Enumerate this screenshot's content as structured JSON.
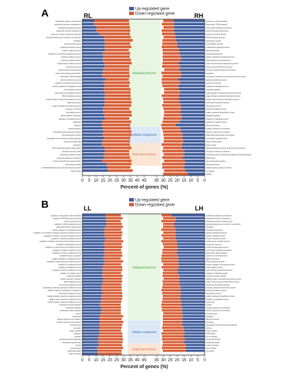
{
  "colors": {
    "up": "#3f5e9e",
    "down": "#d95f35",
    "bio_bg": "#e8f5e1",
    "bio_text": "#2a9a3e",
    "cell_bg": "#dde9f7",
    "cell_text": "#2b5ea8",
    "mol_bg": "#fbe6d6",
    "mol_text": "#c8663a"
  },
  "chart_data": [
    {
      "panel": "A",
      "type": "bar",
      "legend": [
        "Up-regulated gene",
        "Down-regulated gene"
      ],
      "left_title": "RL",
      "right_title": "RH",
      "xlabel": "Percent of genes (%)",
      "xticks": [
        "0",
        "5",
        "10",
        "15",
        "20",
        "25",
        "30",
        "35",
        "40",
        "45",
        "35",
        "30",
        "25",
        "20",
        "15",
        "10",
        "5",
        "0"
      ],
      "categories": [
        {
          "name": "Biological process",
          "start": 0,
          "end": 33
        },
        {
          "name": "Cellular component",
          "start": 33,
          "end": 38
        },
        {
          "name": "Molecular function",
          "start": 38,
          "end": 45
        }
      ],
      "left_terms": [
        "multicellular organism development",
        "anatomical structure morphogenesis",
        "multicellular organismal process",
        "anatomical structure development",
        "response to oxygen-containing compound",
        "developmental process involved in reproduction",
        "translation",
        "developmental process",
        "peptide biosynthetic process",
        "peptide metabolic process",
        "regulation of multicellular organismal process",
        "amide biosynthetic process",
        "response to abiotic stimulus",
        "cellular amide metabolic process",
        "reproductive process",
        "cellular developmental process",
        "nucleic acid-templated transcription",
        "transcription, DNA-templated",
        "cellular biosynthetic process",
        "regulation of developmental process",
        "positive regulation of biological process",
        "multi-organism process",
        "macromolecule biosynthetic process",
        "RNA biosynthetic process",
        "cellular nitrogen compound biosynthetic process",
        "signal transduction",
        "organic substance biosynthetic process",
        "response to chemical",
        "biosynthetic process",
        "cellular response to stimulus",
        "regulation of biological process",
        "plastid part",
        "ribosome",
        "ribosomal subunit",
        "intracellular ribonucleoprotein complex",
        "ribonucleoprotein complex",
        "intracellular non-membrane-bounded organelle",
        "plasma membrane part",
        "membrane",
        "DNA binding transcription factor activity",
        "structural molecule activity",
        "transcription regulator activity",
        "structural constituent of ribosome",
        "protein serine/threonine kinase activity",
        "protein kinase activity",
        "phosphotransferase activity, alcohol group as acceptor",
        "kinase activity"
      ],
      "right_terms": [
        "response to external stimulus",
        "transcription, DNA-templated",
        "nucleic acid-templated transcription",
        "cellular developmental process",
        "response to abiotic stimulus",
        "RNA biosynthetic process",
        "reproductive process",
        "multi-organism process",
        "multicellular organismal process",
        "signal transduction",
        "developmental process",
        "positive regulation of biological process",
        "anatomical structure development",
        "cellular macromolecule biosynthetic process",
        "macromolecule biosynthetic process",
        "aromatic compound biosynthetic process",
        "translation",
        "nucleobase-containing compound biosynthetic process",
        "peptide biosynthetic process",
        "response to stimulus",
        "regulation of biological process",
        "biological regulation",
        "cellular nitrogen compound biosynthetic process",
        "organonitrogen compound biosynthetic process",
        "organic cyclic compound biosynthetic process",
        "heterocycle biosynthetic process",
        "biosynthetic process",
        "cellular biosynthetic process",
        "organic substance biosynthetic process",
        "biological regulation",
        "regulation of biological process",
        "regulation of cellular process",
        "plasma membrane",
        "integral component of membrane",
        "intrinsic component of membrane",
        "DNA binding transcription factor activity",
        "transcription regulator activity",
        "protein kinase activity",
        "kinase activity",
        "phosphotransferase activity, alcohol group as acceptor",
        "structural constituent of ribosome",
        "transferase activity, transferring phosphorus-containing groups",
        "DNA binding",
        "structural molecule activity",
        "transferase activity",
        "catalytic activity, acting on a protein",
        "ion binding",
        "binding"
      ],
      "left_total": [
        33.9,
        34.2,
        34.6,
        34.9,
        34.5,
        35.2,
        36.6,
        34.8,
        35.6,
        33.8,
        34.7,
        34.4,
        35.3,
        35.9,
        34.2,
        34.1,
        34.2,
        34.5,
        33.8,
        34.6,
        34.0,
        35.1,
        35.0,
        35.1,
        35.3,
        35.8,
        35.5,
        34.2,
        35.7,
        35.9,
        34.0,
        35.6,
        34.7,
        35.1,
        35.7,
        35.8,
        34.9,
        34.6,
        34.6,
        35.6,
        34.0,
        34.0,
        34.8,
        35.8,
        35.7,
        35.0,
        36.6
      ],
      "left_up": [
        8.7,
        8.4,
        10.3,
        10.1,
        12.0,
        15.7,
        16.1,
        16.3,
        16.2,
        16.3,
        14.8,
        15.0,
        14.7,
        15.7,
        16.2,
        15.1,
        14.8,
        14.5,
        16.9,
        15.4,
        16.0,
        15.6,
        16.0,
        16.4,
        16.2,
        16.0,
        16.0,
        15.1,
        15.2,
        15.5,
        16.3,
        14.5,
        14.2,
        14.8,
        15.4,
        14.5,
        15.8,
        14.5,
        14.2,
        16.0,
        16.3,
        15.7,
        16.0,
        14.2,
        17.5,
        18.0,
        18.6
      ],
      "right_total": [
        30.2,
        31.2,
        30.0,
        31.3,
        31.0,
        29.9,
        30.7,
        30.9,
        31.3,
        30.7,
        30.5,
        30.7,
        30.5,
        30.7,
        31.0,
        29.4,
        31.5,
        30.7,
        31.3,
        31.3,
        30.8,
        29.5,
        29.6,
        31.3,
        30.3,
        30.1,
        30.9,
        30.1,
        29.5,
        29.7,
        30.2,
        30.7,
        31.7,
        31.2,
        30.4,
        30.1,
        29.7,
        29.9,
        31.4,
        30.2,
        30.7,
        29.9,
        30.9,
        29.6,
        30.9,
        30.8,
        29.5,
        30.2
      ],
      "right_up": [
        22.5,
        22.2,
        22.2,
        22.3,
        21.9,
        21.3,
        20.7,
        20.1,
        20.1,
        18.7,
        18.4,
        17.4,
        17.3,
        19.0,
        17.8,
        18.3,
        17.1,
        17.3,
        19.0,
        17.7,
        19.1,
        18.9,
        17.9,
        18.5,
        18.7,
        18.2,
        17.4,
        17.2,
        17.8,
        16.9,
        16.8,
        18.1,
        21.2,
        17.8,
        17.4,
        16.1,
        16.2,
        15.6,
        16.3,
        16.5,
        14.9,
        14.9,
        15.9,
        14.4,
        14.5,
        15.1,
        14.0,
        12.0
      ]
    },
    {
      "panel": "B",
      "type": "bar",
      "legend": [
        "Up-regulated gene",
        "Down-regulated gene"
      ],
      "left_title": "LL",
      "right_title": "LH",
      "xlabel": "Percent of genes (%)",
      "xticks": [
        "0",
        "5",
        "10",
        "15",
        "20",
        "25",
        "30",
        "35",
        "40",
        "45",
        "35",
        "30",
        "25",
        "20",
        "15",
        "10",
        "5",
        "0"
      ],
      "categories": [
        {
          "name": "Biological process",
          "start": 0,
          "end": 37
        },
        {
          "name": "Cellular component",
          "start": 37,
          "end": 45
        },
        {
          "name": "Molecular function",
          "start": 45,
          "end": 49
        }
      ],
      "left_terms": [
        "regulation of transcription, DNA-templated",
        "regulation of RNA biosynthetic process",
        "developmental process",
        "regulation of RNA metabolic process",
        "anatomical structure development",
        "positive regulation of biological process",
        "regulation of nucleobase-containing compound metabolic process",
        "regulation of nitrogen compound metabolic process",
        "regulation of cellular biosynthetic process",
        "regulation of cellular macromolecule biosynthetic process",
        "regulation of biosynthetic process",
        "regulation of macromolecule biosynthetic process",
        "regulation of cellular metabolic process",
        "regulation of primary metabolic process",
        "regulation of gene expression",
        "negative regulation of biological process",
        "regulation of macromolecule metabolic process",
        "regulation of metabolic process",
        "regulation of biological process",
        "regulation of primary metabolic process",
        "regulation of cellular process",
        "biological regulation",
        "cellular response to stimulus",
        "RNA metabolic process",
        "nucleic acid metabolic process",
        "nucleobase-containing compound metabolic process",
        "cellular component organization or biogenesis",
        "heterocycle metabolic process",
        "cellular aromatic compound metabolic process",
        "organic cyclic compound metabolic process",
        "cellular nitrogen compound metabolic process",
        "membrane-bounded organelle",
        "intracellular organelle",
        "transcription, DNA-templated",
        "nucleus",
        "nuclear part",
        "integral component of membrane",
        "intrinsic component of membrane",
        "membrane part",
        "membrane",
        "protein complex",
        "cytoplasm",
        "organelle",
        "membrane-bounded organelle",
        "intracellular organelle part",
        "cell part",
        "protein binding",
        "transferase activity",
        "metal ion binding"
      ],
      "right_terms": [
        "multicellular organism development",
        "anatomical structure development",
        "anatomical structure morphogenesis",
        "developmental process involved in reproduction",
        "translation",
        "developmental process",
        "peptide biosynthetic process",
        "peptide metabolic process",
        "amide biosynthetic process",
        "cellular amide metabolic process",
        "reproductive process",
        "cellular developmental process",
        "nucleic acid-templated transcription",
        "transcription, DNA-templated",
        "response to external stimulus",
        "signal transduction",
        "RNA biosynthetic process",
        "positive regulation of biological process",
        "multi-organism process",
        "macromolecule biosynthetic process",
        "regulation of biological quality",
        "response to abiotic stimulus",
        "cellular nitrogen compound biosynthetic process",
        "organic cyclic compound biosynthetic process",
        "heterocycle biosynthetic process",
        "aromatic compound biosynthetic process",
        "cellular biosynthetic process",
        "biosynthetic process",
        "organic substance biosynthetic process",
        "regulation of biological process",
        "nuclear part",
        "nucleus",
        "integral component of membrane",
        "intrinsic component of membrane",
        "membrane part",
        "cytoplasm",
        "plasma membrane",
        "membrane",
        "intracellular membrane-bounded organelle",
        "cell part",
        "protein binding",
        "DNA binding",
        "zinc ion binding",
        "nucleic acid binding",
        "transferase activity",
        "metal ion binding",
        "cation binding",
        "ion binding"
      ],
      "left_total": [
        28.0,
        29.3,
        27.9,
        28.7,
        29.4,
        28.3,
        29.1,
        28.7,
        28.4,
        29.8,
        28.6,
        29.0,
        28.2,
        28.8,
        29.1,
        27.9,
        29.6,
        28.2,
        29.0,
        29.1,
        28.2,
        29.2,
        28.8,
        28.9,
        28.4,
        28.7,
        28.6,
        29.0,
        29.2,
        28.9,
        28.4,
        27.9,
        28.1,
        28.0,
        28.0,
        29.5,
        28.6,
        29.8,
        29.1,
        28.6,
        28.1,
        29.1,
        29.2,
        29.5,
        29.3,
        28.9,
        29.6,
        28.6,
        28.6
      ],
      "left_up": [
        17.1,
        17.3,
        17.4,
        17.5,
        16.7,
        15.8,
        16.1,
        15.9,
        16.8,
        16.3,
        15.5,
        16.0,
        15.9,
        16.1,
        15.9,
        15.4,
        16.2,
        15.6,
        14.5,
        14.9,
        14.8,
        14.3,
        15.0,
        14.9,
        14.4,
        13.7,
        14.0,
        14.7,
        13.5,
        14.4,
        13.4,
        12.7,
        13.5,
        13.5,
        13.4,
        12.7,
        12.6,
        12.7,
        12.3,
        12.5,
        12.7,
        12.3,
        11.8,
        11.5,
        11.8,
        12.1,
        10.8,
        11.1,
        11.3
      ],
      "right_total": [
        31.3,
        30.3,
        31.6,
        30.3,
        30.4,
        31.6,
        30.1,
        31.4,
        30.3,
        31.6,
        30.5,
        29.8,
        30.8,
        30.8,
        31.4,
        31.6,
        31.4,
        30.2,
        31.4,
        30.2,
        30.5,
        30.7,
        29.9,
        30.7,
        30.5,
        30.9,
        31.5,
        30.9,
        30.6,
        30.7,
        31.2,
        31.6,
        31.3,
        31.2,
        30.1,
        30.5,
        30.4,
        30.5,
        30.5,
        31.0,
        30.3,
        31.5,
        31.0,
        31.2,
        30.5,
        30.7,
        31.2,
        30.5
      ],
      "right_up": [
        24.1,
        21.1,
        21.3,
        22.3,
        21.8,
        21.0,
        21.0,
        21.0,
        20.8,
        20.3,
        20.0,
        19.9,
        19.7,
        20.4,
        19.5,
        19.1,
        19.2,
        18.9,
        18.7,
        19.5,
        19.8,
        18.3,
        18.7,
        18.4,
        18.2,
        17.4,
        17.8,
        17.3,
        17.8,
        17.5,
        16.8,
        17.4,
        16.4,
        16.4,
        16.4,
        15.9,
        16.4,
        16.1,
        16.4,
        15.1,
        15.1,
        14.7,
        15.3,
        14.2,
        15.2,
        13.6,
        13.9,
        13.6
      ]
    }
  ]
}
